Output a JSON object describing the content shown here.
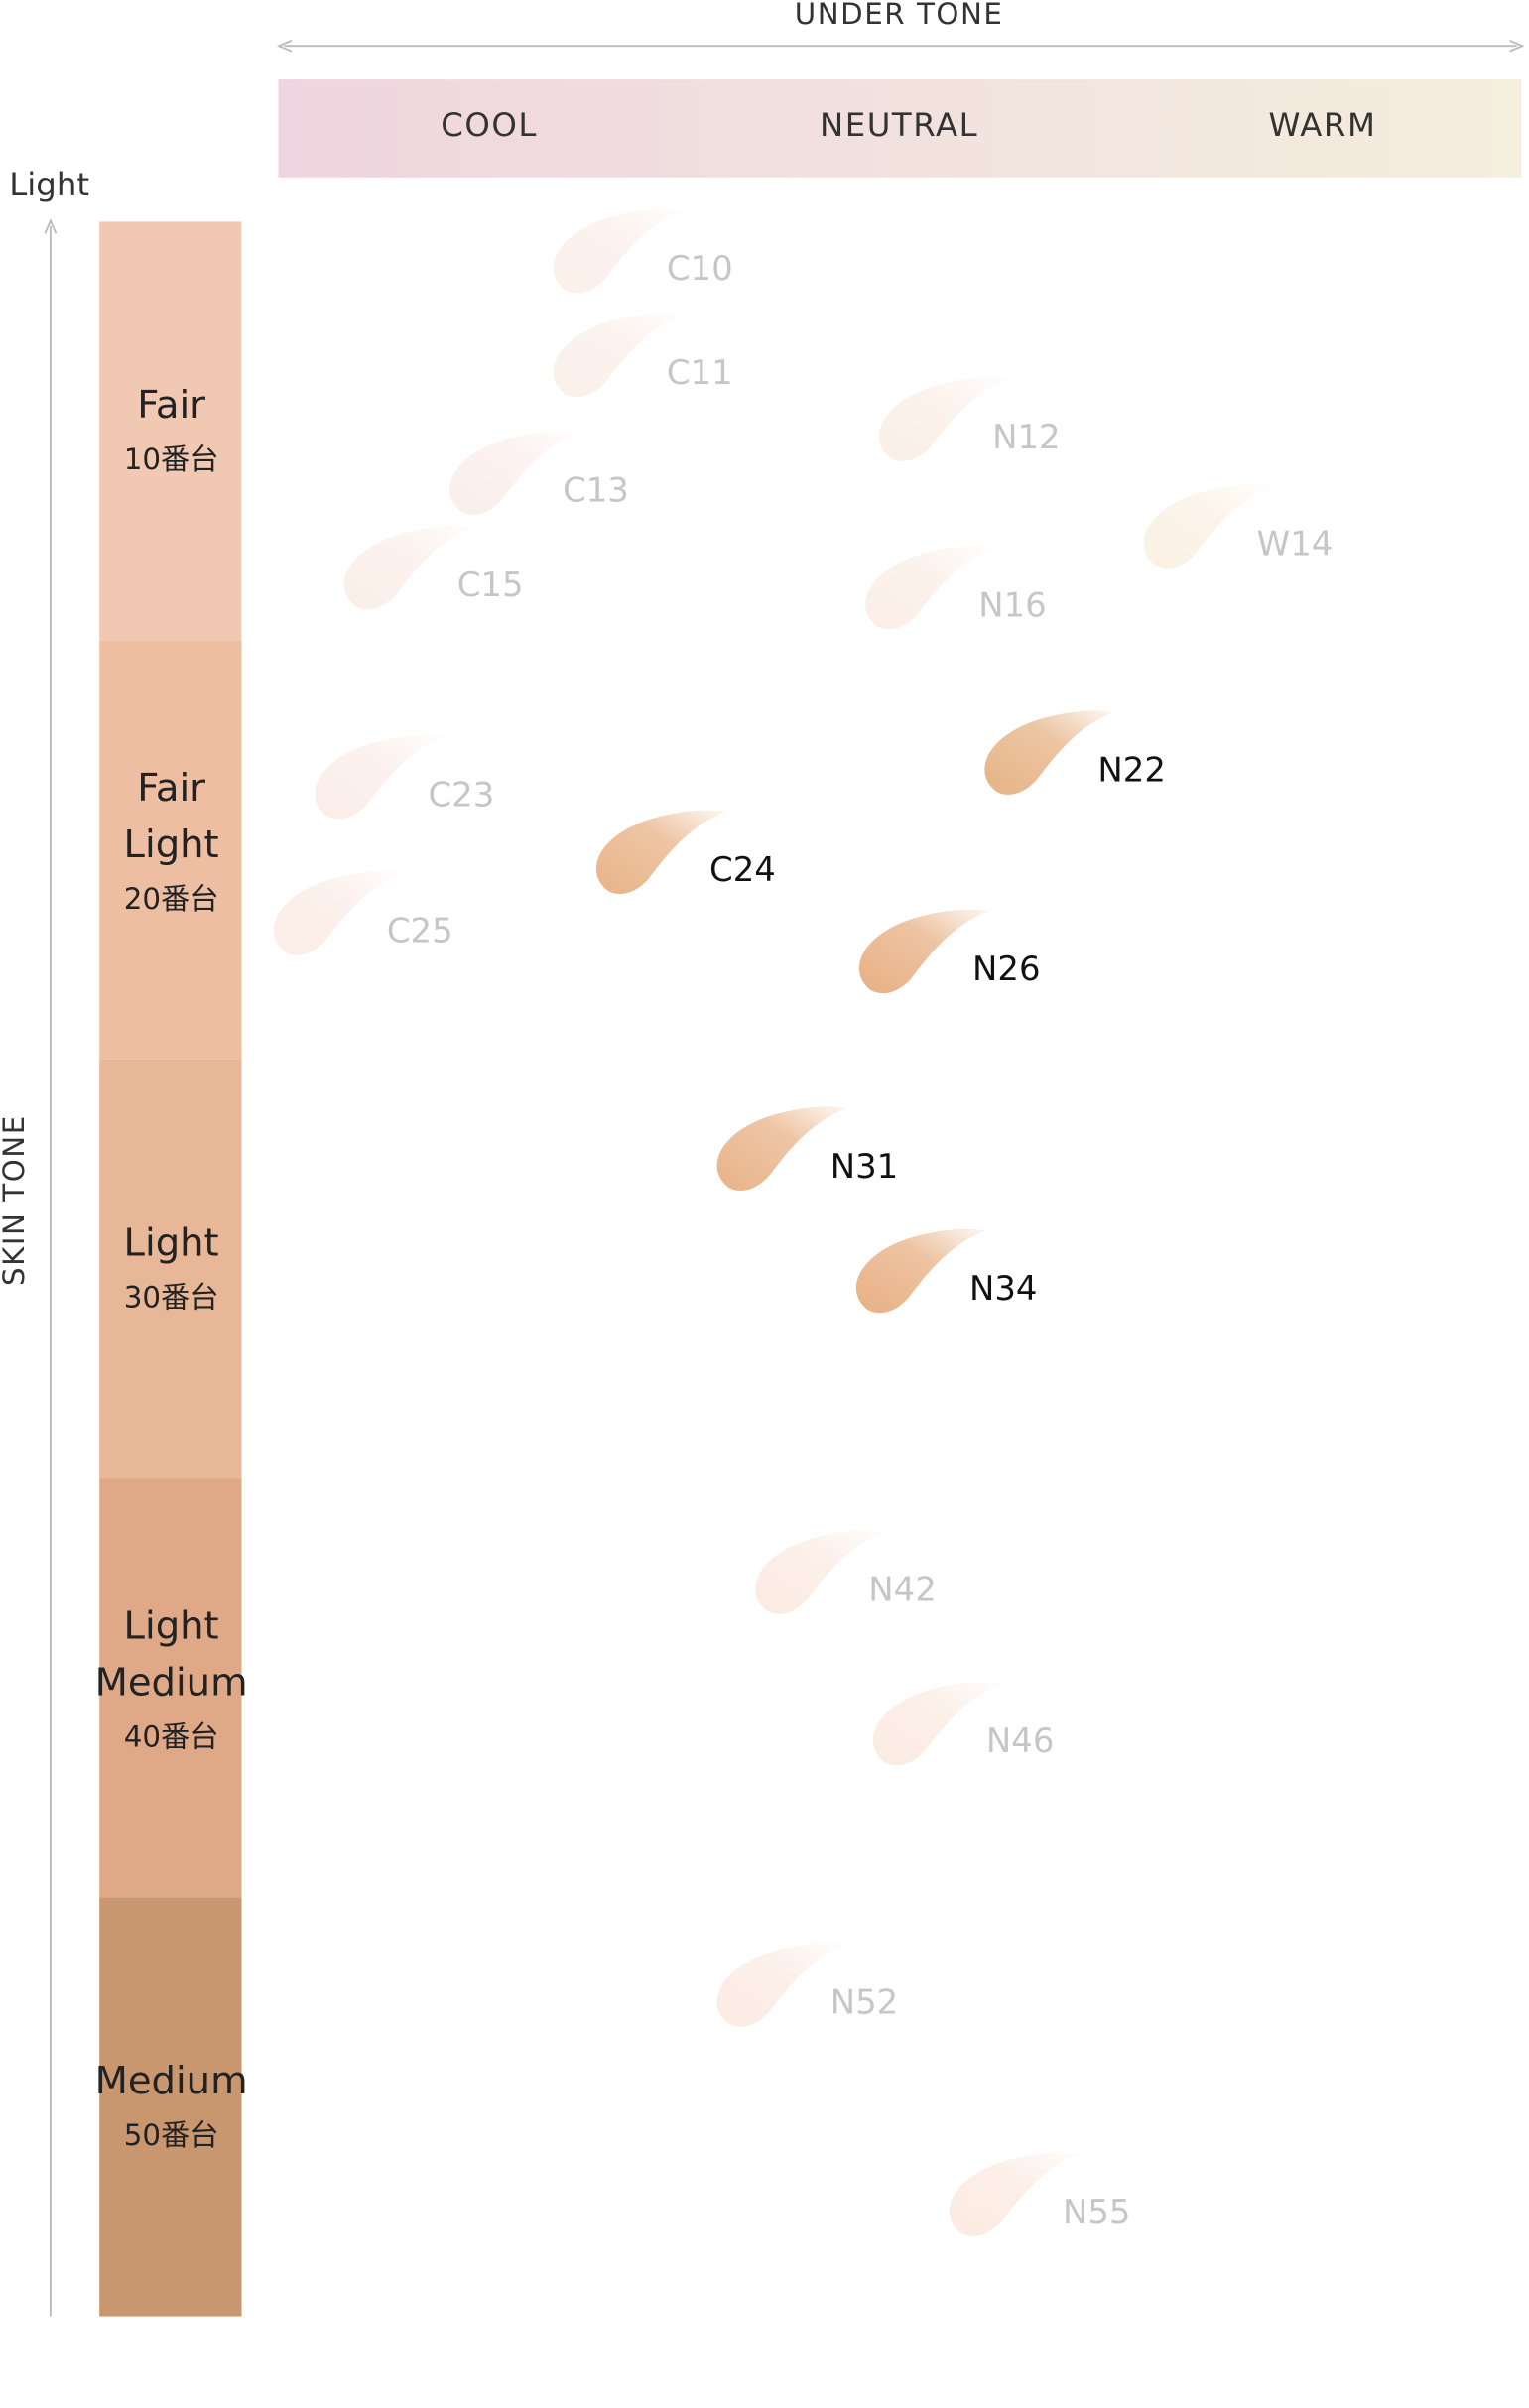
{
  "header": {
    "title": "UNDER TONE",
    "undertones": [
      "COOL",
      "NEUTRAL",
      "WARM"
    ]
  },
  "axis": {
    "top_label": "Light",
    "title": "SKIN TONE"
  },
  "skin_tones": [
    {
      "lines": [
        "Fair"
      ],
      "number": "10番台",
      "color": "#f1c9b2"
    },
    {
      "lines": [
        "Fair",
        "Light"
      ],
      "number": "20番台",
      "color": "#edbea2"
    },
    {
      "lines": [
        "Light"
      ],
      "number": "30番台",
      "color": "#e8b797"
    },
    {
      "lines": [
        "Light",
        "Medium"
      ],
      "number": "40番台",
      "color": "#dfa886"
    },
    {
      "lines": [
        "Medium"
      ],
      "number": "50番台",
      "color": "#c8976f"
    }
  ],
  "shades": [
    {
      "label": "C10",
      "color": "#fbefe9"
    },
    {
      "label": "C11",
      "color": "#fbefe9"
    },
    {
      "label": "N12",
      "color": "#fbefe6"
    },
    {
      "label": "C13",
      "color": "#fbeeea"
    },
    {
      "label": "W14",
      "color": "#fbf1e4"
    },
    {
      "label": "C15",
      "color": "#fbeee8"
    },
    {
      "label": "N16",
      "color": "#fbeee6"
    },
    {
      "label": "N22",
      "color": "#e6b385"
    },
    {
      "label": "C23",
      "color": "#fbede8"
    },
    {
      "label": "C24",
      "color": "#e9b387"
    },
    {
      "label": "C25",
      "color": "#fbece6"
    },
    {
      "label": "N26",
      "color": "#e8b084"
    },
    {
      "label": "N31",
      "color": "#e8b388"
    },
    {
      "label": "N34",
      "color": "#e8b084"
    },
    {
      "label": "N42",
      "color": "#fbebe2"
    },
    {
      "label": "N46",
      "color": "#fbebe2"
    },
    {
      "label": "N52",
      "color": "#fbebe3"
    },
    {
      "label": "N55",
      "color": "#fbeae1"
    }
  ]
}
